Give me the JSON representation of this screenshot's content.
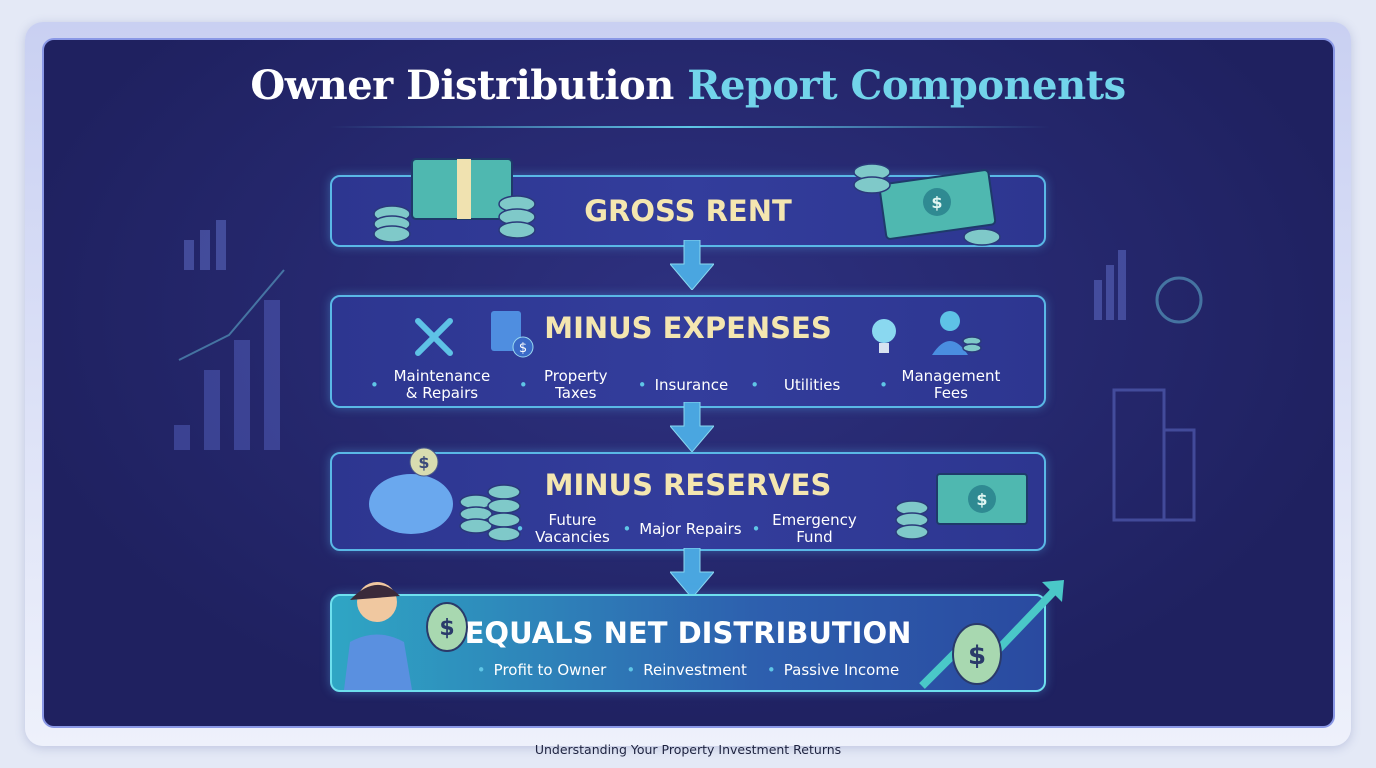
{
  "title": {
    "part1": "Owner Distribution",
    "part2": "Report Components"
  },
  "steps": [
    {
      "heading": "GROSS RENT",
      "items": []
    },
    {
      "heading": "MINUS EXPENSES",
      "items": [
        "Maintenance & Repairs",
        "Property Taxes",
        "Insurance",
        "Utilities",
        "Management Fees"
      ]
    },
    {
      "heading": "MINUS RESERVES",
      "items": [
        "Future Vacancies",
        "Major Repairs",
        "Emergency Fund"
      ]
    },
    {
      "heading": "EQUALS NET DISTRIBUTION",
      "items": [
        "Profit to Owner",
        "Reinvestment",
        "Passive Income"
      ]
    }
  ],
  "caption": "Understanding Your Property Investment Returns",
  "colors": {
    "panel": "#24276a",
    "accent": "#72d4ea",
    "heading": "#f4e6b0",
    "border": "#5ab8e6"
  },
  "icons": [
    "money-stack-icon",
    "coin-stack-icon",
    "bar-chart-icon",
    "wrench-screwdriver-icon",
    "tax-document-icon",
    "lightbulb-icon",
    "manager-icon",
    "piggy-bank-icon",
    "cash-bill-icon",
    "person-icon",
    "money-bag-icon",
    "growth-arrow-icon"
  ]
}
